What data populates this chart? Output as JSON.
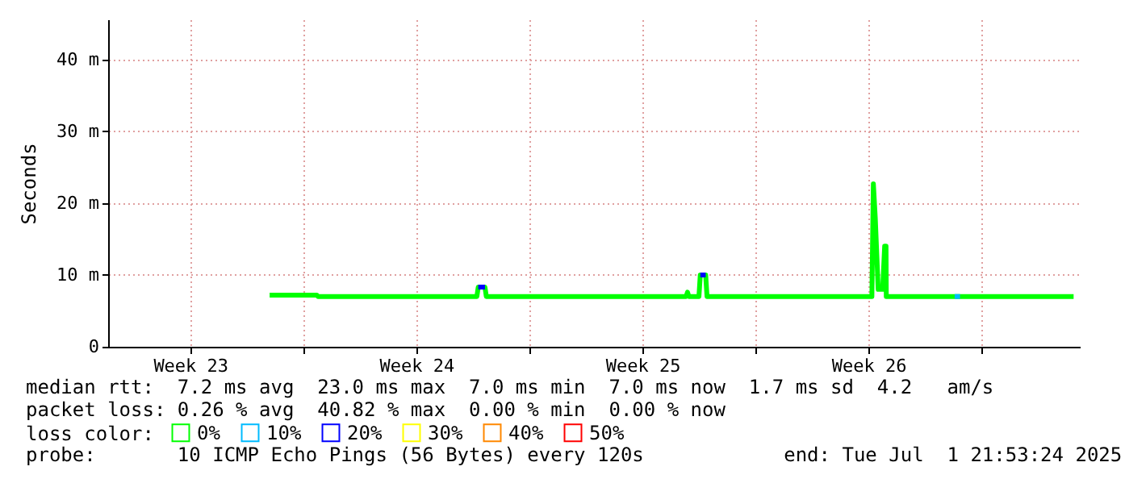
{
  "chart_data": {
    "type": "line",
    "ylabel": "Seconds",
    "legend_title": "loss color:",
    "legend": "bottom",
    "grid": true,
    "line_style": "solid",
    "xlim": [
      "2025-06-01T23:00",
      "2025-07-02T01:00"
    ],
    "xticks": [
      {
        "value": "2025-06-04T12:00",
        "label": "Week 23"
      },
      {
        "value": "2025-06-08T00:00",
        "label": null
      },
      {
        "value": "2025-06-11T12:00",
        "label": "Week 24"
      },
      {
        "value": "2025-06-15T00:00",
        "label": null
      },
      {
        "value": "2025-06-18T12:00",
        "label": "Week 25"
      },
      {
        "value": "2025-06-22T00:00",
        "label": null
      },
      {
        "value": "2025-06-25T12:00",
        "label": "Week 26"
      },
      {
        "value": "2025-06-29T00:00",
        "label": null
      }
    ],
    "ylim": [
      0,
      45.6
    ],
    "yticks": [
      {
        "value": 0,
        "label": "0"
      },
      {
        "value": 10,
        "label": "10 m"
      },
      {
        "value": 20,
        "label": "20 m"
      },
      {
        "value": 30,
        "label": "30 m"
      },
      {
        "value": 40,
        "label": "40 m"
      }
    ],
    "x": [
      "2025-06-06T23:00",
      "2025-06-08T10:00",
      "2025-06-08T11:00",
      "2025-06-13T09:00",
      "2025-06-13T10:00",
      "2025-06-13T15:00",
      "2025-06-13T16:00",
      "2025-06-19T20:30",
      "2025-06-19T21:30",
      "2025-06-19T22:30",
      "2025-06-20T06:00",
      "2025-06-20T07:00",
      "2025-06-20T11:00",
      "2025-06-20T12:00",
      "2025-06-25T14:30",
      "2025-06-25T15:36",
      "2025-06-25T17:00",
      "2025-06-25T19:12",
      "2025-06-25T22:30",
      "2025-06-26T00:00",
      "2025-06-26T01:00",
      "2025-06-26T01:12",
      "2025-07-01T20:24"
    ],
    "series": [
      {
        "name": "0%",
        "color": "#00ff00",
        "values": [
          7.2,
          7.2,
          7.0,
          7.0,
          8.3,
          8.3,
          7.0,
          7.0,
          7.6,
          7.0,
          7.0,
          10.0,
          10.0,
          7.0,
          7.0,
          22.7,
          18.0,
          8.0,
          8.0,
          14.0,
          14.0,
          7.0,
          7.0
        ]
      },
      {
        "name": "10%",
        "color": "#00bbff",
        "x": [
          "2025-06-28T04:00",
          "2025-06-28T08:00"
        ],
        "values": [
          7.0,
          7.0
        ]
      },
      {
        "name": "20%",
        "color": "#0000ff",
        "x": [
          "2025-06-13T10:00",
          "2025-06-13T15:00",
          "2025-06-16T12:00",
          "2025-06-20T07:00",
          "2025-06-20T11:00"
        ],
        "values": [
          8.3,
          8.3,
          null,
          10.0,
          10.0
        ]
      },
      {
        "name": "30%",
        "color": "#ffff00",
        "values": [
          null,
          null,
          null,
          null,
          null,
          null,
          null,
          null,
          null,
          null,
          null,
          null,
          null,
          null,
          null,
          null,
          null,
          null,
          null,
          null,
          null,
          null,
          null
        ]
      },
      {
        "name": "40%",
        "color": "#ff8800",
        "values": [
          null,
          null,
          null,
          null,
          null,
          null,
          null,
          null,
          null,
          null,
          null,
          null,
          null,
          null,
          null,
          null,
          null,
          null,
          null,
          null,
          null,
          null,
          null
        ]
      },
      {
        "name": "50%",
        "color": "#ff0000",
        "values": [
          null,
          null,
          null,
          null,
          null,
          null,
          null,
          null,
          null,
          null,
          null,
          null,
          null,
          null,
          null,
          null,
          null,
          null,
          null,
          null,
          null,
          null,
          null
        ]
      }
    ],
    "annotations": [
      "median rtt:  7.2 ms avg  23.0 ms max  7.0 ms min  7.0 ms now  1.7 ms sd  4.2   am/s",
      "packet loss: 0.26 % avg  40.82 % max  0.00 % min  0.00 % now",
      "probe:       10 ICMP Echo Pings (56 Bytes) every 120s            end: Tue Jul  1 21:53:24 2025"
    ]
  }
}
